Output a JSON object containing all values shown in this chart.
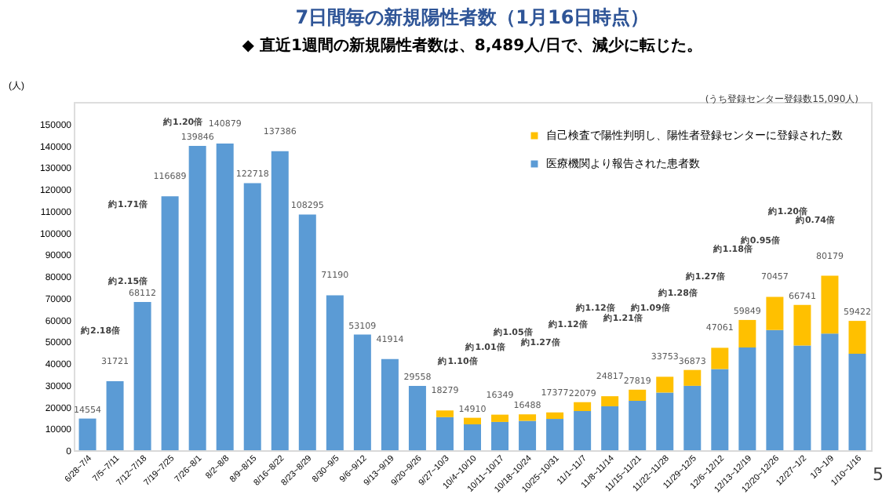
{
  "chart_data": {
    "type": "bar",
    "title": "7日間毎の新規陽性者数（1月16日時点）",
    "subtitle": "◆ 直近1週間の新規陽性者数は、8,489人/日で、減少に転じた。",
    "ylabel": "(人)",
    "categories": [
      "6/28~7/4",
      "7/5~7/11",
      "7/12~7/18",
      "7/19~7/25",
      "7/26~8/1",
      "8/2~8/8",
      "8/9~8/15",
      "8/16~8/22",
      "8/23~8/29",
      "8/30~9/5",
      "9/6~9/12",
      "9/13~9/19",
      "9/20~9/26",
      "9/27~10/3",
      "10/4~10/10",
      "10/11~10/17",
      "10/18~10/24",
      "10/25~10/31",
      "11/1~11/7",
      "11/8~11/14",
      "11/15~11/21",
      "11/22~11/28",
      "11/29~12/5",
      "12/6~12/12",
      "12/13~12/19",
      "12/20~12/26",
      "12/27~1/2",
      "1/3~1/9",
      "1/10~1/16"
    ],
    "stacked": true,
    "series": [
      {
        "name": "医療機関より報告された患者数",
        "color": "#5b9bd5",
        "values": [
          14554,
          31721,
          68112,
          116689,
          139846,
          140879,
          122718,
          137386,
          108295,
          71190,
          53109,
          41914,
          29558,
          15200,
          11900,
          13000,
          13500,
          14400,
          18000,
          20200,
          22700,
          26500,
          29600,
          37300,
          47200,
          55200,
          48100,
          53600,
          44332
        ]
      },
      {
        "name": "自己検査で陽性判明し、陽性者登録センターに登録された数",
        "color": "#ffc000",
        "values": [
          null,
          null,
          null,
          null,
          null,
          null,
          null,
          null,
          null,
          null,
          null,
          null,
          null,
          3079,
          3010,
          3349,
          2988,
          2977,
          4079,
          4617,
          5119,
          7253,
          7273,
          9761,
          12649,
          15257,
          18641,
          26579,
          15090
        ]
      }
    ],
    "totals": [
      "14554",
      "31721",
      "68112",
      "116689",
      "139846",
      "140879",
      "122718",
      "137386",
      "108295",
      "71190",
      "53109",
      "41914",
      "29558",
      "18279",
      "14910",
      "16349",
      "16488",
      "17377",
      "22079",
      "24817",
      "27819",
      "33753",
      "36873",
      "47061",
      "59849",
      "70457",
      "66741",
      "80179",
      "59422"
    ],
    "ylim": [
      0,
      160000
    ],
    "yticks": [
      0,
      10000,
      20000,
      30000,
      40000,
      50000,
      60000,
      70000,
      80000,
      90000,
      100000,
      110000,
      120000,
      130000,
      140000,
      150000
    ],
    "grid": false,
    "legend": "top right",
    "annotations": [
      "(うち登録センター登録数15,090人)",
      "5",
      "約2.18倍",
      "約2.15倍",
      "約1.71倍",
      "約1.20倍",
      "約1.10倍",
      "約1.01倍",
      "約1.05倍",
      "約1.27倍",
      "約1.12倍",
      "約1.12倍",
      "約1.21倍",
      "約1.09倍",
      "約1.28倍",
      "約1.27倍",
      "約1.18倍",
      "約0.95倍",
      "約1.20倍",
      "約0.74倍"
    ]
  }
}
